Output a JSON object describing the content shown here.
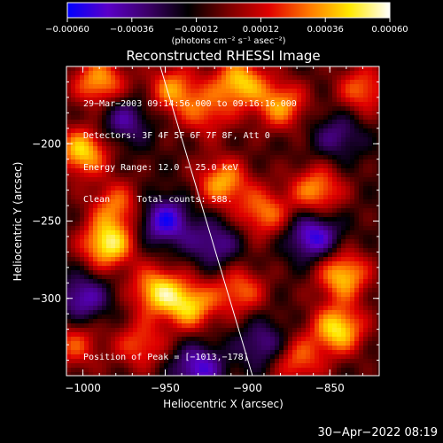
{
  "chart_data": {
    "type": "heatmap",
    "title": "Reconstructed RHESSI Image",
    "xlabel": "Heliocentric X (arcsec)",
    "ylabel": "Heliocentric Y (arcsec)",
    "xlim": [
      -1010,
      -820
    ],
    "ylim": [
      -350,
      -150
    ],
    "x_ticks": [
      -1000,
      -950,
      -900,
      -850
    ],
    "y_ticks": [
      -200,
      -250,
      -300
    ],
    "x_tick_labels": [
      "−1000",
      "−950",
      "−900",
      "−850"
    ],
    "y_tick_labels": [
      "−200",
      "−250",
      "−300"
    ],
    "colorbar": {
      "range": [
        -0.0006,
        0.0006
      ],
      "ticks": [
        -0.0006,
        -0.00036,
        -0.00012,
        0.00012,
        0.00036,
        0.0006
      ],
      "tick_labels": [
        "−0.00060",
        "−0.00036",
        "−0.00012",
        "0.00012",
        "0.00036",
        "0.00060"
      ],
      "unit_label": "(photons cm⁻² s⁻¹ asec⁻²)",
      "colormap": [
        "#0000ff",
        "#5a00c8",
        "#3c0068",
        "#000000",
        "#7a0000",
        "#e00000",
        "#ff7800",
        "#ffe800",
        "#ffffff"
      ]
    },
    "annotations": [
      "29−Mar−2003 09:14:56.000 to 09:16:16.000",
      "Detectors: 3F 4F 5F 6F 7F 8F, Att 0",
      "Energy Range: 12.0 − 25.0 keV",
      "Clean     Total counts: 588."
    ],
    "peak_label": "Position of Peak = [−1013,−178]",
    "limb_line": [
      [
        -953,
        -150
      ],
      [
        -897,
        -350
      ]
    ],
    "hotspots": [
      {
        "x": -985,
        "y": -265,
        "v": 0.00058
      },
      {
        "x": -1000,
        "y": -205,
        "v": 0.00052
      },
      {
        "x": -990,
        "y": -160,
        "v": 0.00045
      },
      {
        "x": -955,
        "y": -295,
        "v": 0.0005
      },
      {
        "x": -935,
        "y": -305,
        "v": 0.00048
      },
      {
        "x": -945,
        "y": -165,
        "v": 0.0004
      },
      {
        "x": -905,
        "y": -160,
        "v": 0.0005
      },
      {
        "x": -880,
        "y": -175,
        "v": 0.00042
      },
      {
        "x": -915,
        "y": -225,
        "v": 0.00045
      },
      {
        "x": -890,
        "y": -245,
        "v": 0.00038
      },
      {
        "x": -858,
        "y": -230,
        "v": 0.00042
      },
      {
        "x": -842,
        "y": -285,
        "v": 0.0005
      },
      {
        "x": -845,
        "y": -320,
        "v": 0.00055
      },
      {
        "x": -870,
        "y": -340,
        "v": 0.00035
      },
      {
        "x": -905,
        "y": -295,
        "v": 0.00035
      },
      {
        "x": -965,
        "y": -330,
        "v": 0.00032
      },
      {
        "x": -1005,
        "y": -330,
        "v": 0.0003
      },
      {
        "x": -830,
        "y": -165,
        "v": 0.00035
      },
      {
        "x": -925,
        "y": -180,
        "v": 0.0003
      },
      {
        "x": -980,
        "y": -240,
        "v": 0.00035
      },
      {
        "x": -950,
        "y": -250,
        "v": -0.00045
      },
      {
        "x": -1000,
        "y": -300,
        "v": -0.00035
      },
      {
        "x": -860,
        "y": -260,
        "v": -0.00045
      },
      {
        "x": -930,
        "y": -345,
        "v": -0.0004
      },
      {
        "x": -920,
        "y": -265,
        "v": -0.0003
      },
      {
        "x": -975,
        "y": -185,
        "v": -0.0003
      },
      {
        "x": -845,
        "y": -195,
        "v": -0.00025
      },
      {
        "x": -890,
        "y": -330,
        "v": -0.0003
      }
    ]
  },
  "footer": {
    "date": "30−Apr−2022 08:19"
  }
}
